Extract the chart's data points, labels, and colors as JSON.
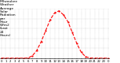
{
  "title": "Milwaukee Weather Average Solar Radiation per Hour W/m2 (Last 24 Hours)",
  "x_labels": [
    "0",
    "1",
    "2",
    "3",
    "4",
    "5",
    "6",
    "7",
    "8",
    "9",
    "10",
    "11",
    "12",
    "13",
    "14",
    "15",
    "16",
    "17",
    "18",
    "19",
    "20",
    "21",
    "22",
    "23",
    "0"
  ],
  "y_values": [
    0,
    0,
    0,
    0,
    0,
    0,
    2,
    25,
    80,
    170,
    280,
    390,
    460,
    480,
    440,
    370,
    260,
    150,
    60,
    15,
    2,
    0,
    0,
    0,
    0
  ],
  "y_max": 500,
  "y_ticks": [
    0,
    100,
    200,
    300,
    400,
    500
  ],
  "y_tick_labels": [
    "0",
    "100",
    "200",
    "300",
    "400",
    "500"
  ],
  "line_color": "#ff0000",
  "bg_color": "#ffffff",
  "plot_bg_color": "#ffffff",
  "grid_color": "#888888",
  "right_bar_color": "#000000",
  "title_fontsize": 3.2,
  "tick_fontsize": 2.8,
  "line_width": 0.8,
  "marker_size": 1.0
}
